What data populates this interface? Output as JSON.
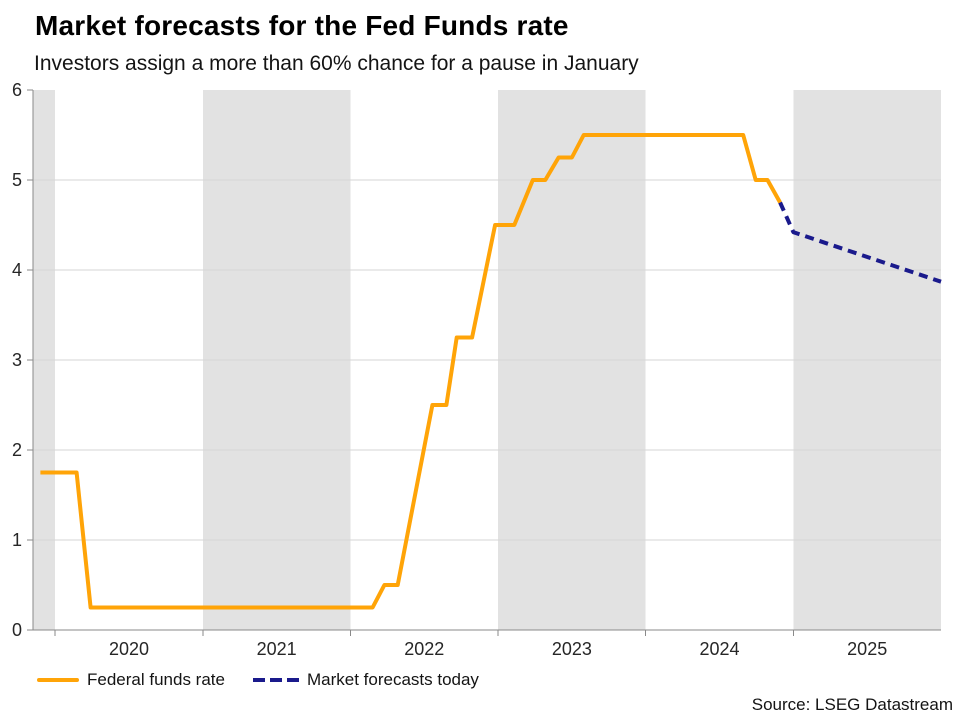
{
  "header": {
    "title": "Market forecasts for the Fed Funds rate",
    "subtitle": "Investors assign a more than 60% chance for a pause in January"
  },
  "legend": {
    "items": [
      {
        "label": "Federal funds rate"
      },
      {
        "label": "Market forecasts today"
      }
    ]
  },
  "footer": {
    "source": "Source: LSEG Datastream"
  },
  "chart_data": {
    "type": "line",
    "title": "Market forecasts for the Fed Funds rate",
    "subtitle": "Investors assign a more than 60% chance for a pause in January",
    "x_range": [
      2019.85,
      2026.0
    ],
    "y_range": [
      0,
      6
    ],
    "y_ticks": [
      {
        "value": 0,
        "label": "0"
      },
      {
        "value": 1,
        "label": "1"
      },
      {
        "value": 2,
        "label": "2"
      },
      {
        "value": 3,
        "label": "3"
      },
      {
        "value": 4,
        "label": "4"
      },
      {
        "value": 5,
        "label": "5"
      },
      {
        "value": 6,
        "label": "6"
      }
    ],
    "y_gridlines": [
      1,
      2,
      3,
      4,
      5
    ],
    "x_ticks": [
      2020,
      2021,
      2022,
      2023,
      2024,
      2025
    ],
    "x_labels": [
      {
        "label": "2020",
        "center": 2020.5
      },
      {
        "label": "2021",
        "center": 2021.5
      },
      {
        "label": "2022",
        "center": 2022.5
      },
      {
        "label": "2023",
        "center": 2023.5
      },
      {
        "label": "2024",
        "center": 2024.5
      },
      {
        "label": "2025",
        "center": 2025.5
      }
    ],
    "shaded_bands": [
      [
        2019.85,
        2020.0
      ],
      [
        2021.0,
        2022.0
      ],
      [
        2023.0,
        2024.0
      ],
      [
        2025.0,
        2026.0
      ]
    ],
    "colors": {
      "band": "#E2E2E2",
      "grid": "#D5D5D5",
      "axis": "#8A8A8A",
      "tick_text": "#262626",
      "federal_funds_orange": "#FFA408",
      "forecast_navy": "#1A1A8C"
    },
    "legend_position": "bottom-left",
    "series": [
      {
        "id": "federal-funds-rate",
        "name": "Federal funds rate",
        "style": "solid",
        "color": "#FFA408",
        "points": [
          [
            2019.9,
            1.75
          ],
          [
            2020.145,
            1.75
          ],
          [
            2020.24,
            0.25
          ],
          [
            2022.15,
            0.25
          ],
          [
            2022.23,
            0.5
          ],
          [
            2022.32,
            0.5
          ],
          [
            2022.555,
            2.5
          ],
          [
            2022.65,
            2.5
          ],
          [
            2022.72,
            3.25
          ],
          [
            2022.824,
            3.25
          ],
          [
            2022.98,
            4.5
          ],
          [
            2023.11,
            4.5
          ],
          [
            2023.235,
            5.0
          ],
          [
            2023.32,
            5.0
          ],
          [
            2023.41,
            5.25
          ],
          [
            2023.5,
            5.25
          ],
          [
            2023.58,
            5.5
          ],
          [
            2024.66,
            5.5
          ],
          [
            2024.745,
            5.0
          ],
          [
            2024.825,
            5.0
          ],
          [
            2024.91,
            4.75
          ]
        ]
      },
      {
        "id": "market-forecasts-today",
        "name": "Market forecasts today",
        "style": "dashed",
        "color": "#1A1A8C",
        "points": [
          [
            2024.91,
            4.75
          ],
          [
            2025.0,
            4.42
          ],
          [
            2026.0,
            3.87
          ]
        ]
      }
    ]
  }
}
